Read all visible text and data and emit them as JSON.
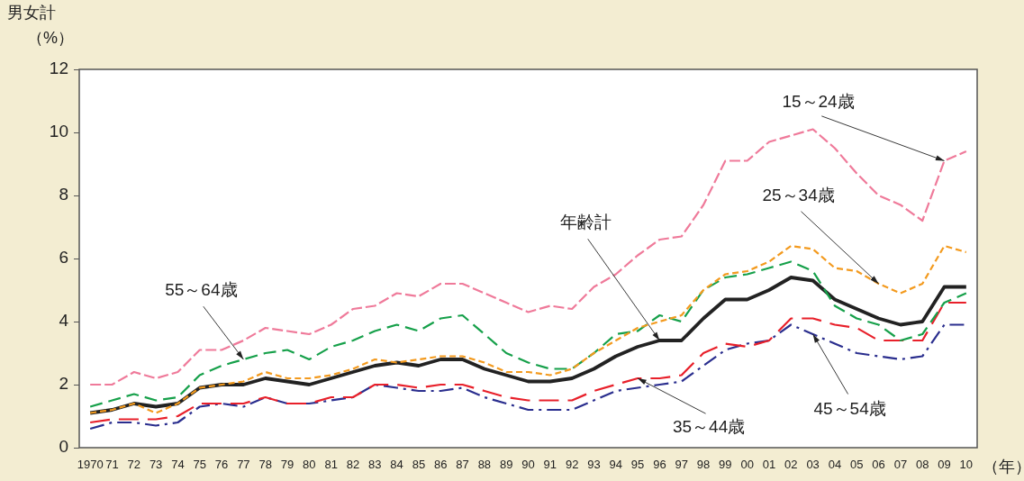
{
  "chart_data": {
    "type": "line",
    "title": "男女計",
    "ylabel": "（%）",
    "xlabel": "（年）",
    "categories": [
      "1970",
      "71",
      "72",
      "73",
      "74",
      "75",
      "76",
      "77",
      "78",
      "79",
      "80",
      "81",
      "82",
      "83",
      "84",
      "85",
      "86",
      "87",
      "88",
      "89",
      "90",
      "91",
      "92",
      "93",
      "94",
      "95",
      "96",
      "97",
      "98",
      "99",
      "00",
      "01",
      "02",
      "03",
      "04",
      "05",
      "06",
      "07",
      "08",
      "09",
      "10"
    ],
    "ylim": [
      0,
      12
    ],
    "yticks": [
      0,
      2,
      4,
      6,
      8,
      10,
      12
    ],
    "grid": false,
    "legend": false,
    "marker": "none",
    "series": [
      {
        "color": "#ef7a9a",
        "line_style": "dashed",
        "values": [
          2.0,
          2.0,
          2.4,
          2.2,
          2.4,
          3.1,
          3.1,
          3.4,
          3.8,
          3.7,
          3.6,
          3.9,
          4.4,
          4.5,
          4.9,
          4.8,
          5.2,
          5.2,
          4.9,
          4.6,
          4.3,
          4.5,
          4.4,
          5.1,
          5.5,
          6.1,
          6.6,
          6.7,
          7.7,
          9.1,
          9.1,
          9.7,
          9.9,
          10.1,
          9.5,
          8.7,
          8.0,
          7.7,
          7.2,
          9.1,
          9.4
        ]
      },
      {
        "color": "#f39a1e",
        "line_style": "dashed",
        "values": [
          1.1,
          1.2,
          1.4,
          1.1,
          1.4,
          1.9,
          2.0,
          2.1,
          2.4,
          2.2,
          2.2,
          2.3,
          2.5,
          2.8,
          2.7,
          2.8,
          2.9,
          2.9,
          2.7,
          2.4,
          2.4,
          2.3,
          2.5,
          3.0,
          3.4,
          3.8,
          4.0,
          4.2,
          5.0,
          5.5,
          5.6,
          5.9,
          6.4,
          6.3,
          5.7,
          5.6,
          5.2,
          4.9,
          5.2,
          6.4,
          6.2
        ]
      },
      {
        "color": "#16a04a",
        "line_style": "dashed",
        "values": [
          1.3,
          1.5,
          1.7,
          1.5,
          1.6,
          2.3,
          2.6,
          2.8,
          3.0,
          3.1,
          2.8,
          3.2,
          3.4,
          3.7,
          3.9,
          3.7,
          4.1,
          4.2,
          3.6,
          3.0,
          2.7,
          2.5,
          2.5,
          3.0,
          3.6,
          3.7,
          4.2,
          4.0,
          5.0,
          5.4,
          5.5,
          5.7,
          5.9,
          5.6,
          4.5,
          4.1,
          3.9,
          3.4,
          3.6,
          4.6,
          4.9
        ]
      },
      {
        "color": "#222222",
        "line_style": "solid",
        "values": [
          1.1,
          1.2,
          1.4,
          1.3,
          1.4,
          1.9,
          2.0,
          2.0,
          2.2,
          2.1,
          2.0,
          2.2,
          2.4,
          2.6,
          2.7,
          2.6,
          2.8,
          2.8,
          2.5,
          2.3,
          2.1,
          2.1,
          2.2,
          2.5,
          2.9,
          3.2,
          3.4,
          3.4,
          4.1,
          4.7,
          4.7,
          5.0,
          5.4,
          5.3,
          4.7,
          4.4,
          4.1,
          3.9,
          4.0,
          5.1,
          5.1
        ]
      },
      {
        "color": "#e8202a",
        "line_style": "dashed",
        "values": [
          0.8,
          0.9,
          0.9,
          0.9,
          1.0,
          1.4,
          1.4,
          1.4,
          1.6,
          1.4,
          1.4,
          1.6,
          1.6,
          2.0,
          2.0,
          1.9,
          2.0,
          2.0,
          1.8,
          1.6,
          1.5,
          1.5,
          1.5,
          1.8,
          2.0,
          2.2,
          2.2,
          2.3,
          3.0,
          3.3,
          3.2,
          3.4,
          4.1,
          4.1,
          3.9,
          3.8,
          3.4,
          3.4,
          3.4,
          4.6,
          4.6
        ]
      },
      {
        "color": "#2a2e8e",
        "line_style": "dashed",
        "values": [
          0.6,
          0.8,
          0.8,
          0.7,
          0.8,
          1.3,
          1.4,
          1.3,
          1.6,
          1.4,
          1.4,
          1.5,
          1.6,
          2.0,
          1.9,
          1.8,
          1.8,
          1.9,
          1.6,
          1.4,
          1.2,
          1.2,
          1.2,
          1.5,
          1.8,
          1.9,
          2.0,
          2.1,
          2.6,
          3.1,
          3.3,
          3.4,
          3.9,
          3.6,
          3.3,
          3.0,
          2.9,
          2.8,
          2.9,
          3.9,
          3.9
        ]
      }
    ],
    "annotations": [
      {
        "text": "15～24歳",
        "x": "09",
        "y": 9.1
      },
      {
        "text": "25～34歳",
        "x": "06",
        "y": 5.2
      },
      {
        "text": "55～64歳",
        "x": "77",
        "y": 2.8
      },
      {
        "text": "年齢計",
        "x": "96",
        "y": 3.4
      },
      {
        "text": "35～44歳",
        "x": "95",
        "y": 2.2
      },
      {
        "text": "45～54歳",
        "x": "03",
        "y": 3.6
      }
    ]
  }
}
